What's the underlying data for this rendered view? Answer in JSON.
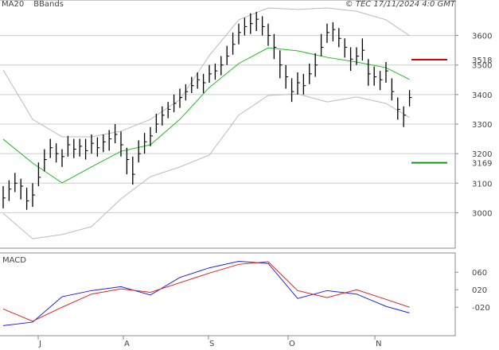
{
  "chart_data": [
    {
      "type": "ohlc",
      "title": "© TEC 17/11/2024 4:0 GMT",
      "color": "#000000",
      "grid": true,
      "xlim": [
        -0.54,
        76.76
      ],
      "ylim": [
        2880,
        3720
      ],
      "yticks": [
        3000,
        3100,
        3200,
        3300,
        3400,
        3500,
        3600
      ],
      "x": [
        0,
        1,
        2,
        3,
        4,
        5,
        6,
        7,
        8,
        9,
        10,
        11,
        12,
        13,
        14,
        15,
        16,
        17,
        18,
        19,
        20,
        21,
        22,
        23,
        24,
        25,
        26,
        27,
        28,
        29,
        30,
        31,
        32,
        33,
        34,
        35,
        36,
        37,
        38,
        39,
        40,
        41,
        42,
        43,
        44,
        45,
        46,
        47,
        48,
        49,
        50,
        51,
        52,
        53,
        54,
        55,
        56,
        57,
        58,
        59,
        60,
        61,
        62,
        63,
        64,
        65,
        66,
        67,
        68,
        69
      ],
      "high": [
        3090,
        3110,
        3135,
        3115,
        3085,
        3100,
        3170,
        3215,
        3250,
        3235,
        3215,
        3260,
        3250,
        3250,
        3250,
        3265,
        3255,
        3265,
        3280,
        3300,
        3275,
        3220,
        3190,
        3245,
        3270,
        3290,
        3335,
        3360,
        3375,
        3400,
        3420,
        3435,
        3460,
        3475,
        3470,
        3500,
        3505,
        3530,
        3565,
        3610,
        3640,
        3660,
        3675,
        3680,
        3665,
        3640,
        3605,
        3550,
        3500,
        3455,
        3475,
        3470,
        3505,
        3540,
        3605,
        3640,
        3645,
        3625,
        3590,
        3560,
        3560,
        3590,
        3520,
        3495,
        3480,
        3510,
        3455,
        3390,
        3360,
        3415
      ],
      "low": [
        3015,
        3040,
        3070,
        3045,
        3010,
        3020,
        3090,
        3140,
        3185,
        3170,
        3155,
        3190,
        3185,
        3190,
        3180,
        3200,
        3190,
        3205,
        3210,
        3235,
        3190,
        3130,
        3095,
        3170,
        3200,
        3225,
        3270,
        3295,
        3320,
        3340,
        3355,
        3380,
        3405,
        3420,
        3405,
        3440,
        3450,
        3465,
        3500,
        3535,
        3570,
        3600,
        3605,
        3615,
        3600,
        3565,
        3520,
        3455,
        3420,
        3375,
        3400,
        3400,
        3435,
        3460,
        3530,
        3575,
        3580,
        3560,
        3525,
        3480,
        3500,
        3515,
        3430,
        3430,
        3415,
        3440,
        3380,
        3315,
        3290,
        3360
      ],
      "close": [
        3050,
        3080,
        3100,
        3090,
        3040,
        3060,
        3120,
        3180,
        3220,
        3200,
        3190,
        3230,
        3215,
        3225,
        3210,
        3235,
        3220,
        3240,
        3250,
        3265,
        3230,
        3180,
        3130,
        3200,
        3240,
        3260,
        3300,
        3330,
        3350,
        3370,
        3390,
        3410,
        3430,
        3450,
        3440,
        3470,
        3480,
        3500,
        3530,
        3570,
        3610,
        3630,
        3640,
        3655,
        3630,
        3600,
        3560,
        3500,
        3460,
        3410,
        3440,
        3430,
        3470,
        3500,
        3560,
        3610,
        3620,
        3590,
        3560,
        3520,
        3530,
        3550,
        3470,
        3460,
        3450,
        3480,
        3410,
        3350,
        3330,
        3390
      ],
      "series": [
        {
          "name": "MA20",
          "color": "#22bb22",
          "x": [
            0,
            5,
            10,
            15,
            20,
            25,
            30,
            35,
            40,
            45,
            50,
            55,
            60,
            65,
            69
          ],
          "values": [
            3249,
            3168,
            3101,
            3155,
            3208,
            3230,
            3316,
            3424,
            3505,
            3558,
            3548,
            3526,
            3510,
            3491,
            3451
          ]
        },
        {
          "name": "BBands",
          "color": "#bbbbbb",
          "x": [
            0,
            5,
            10,
            15,
            20,
            25,
            30,
            35,
            40,
            45,
            50,
            55,
            60,
            65,
            69
          ],
          "upper": [
            3483,
            3316,
            3257,
            3257,
            3276,
            3316,
            3383,
            3532,
            3653,
            3693,
            3688,
            3693,
            3682,
            3653,
            3599
          ],
          "lower": [
            2998,
            2912,
            2926,
            2953,
            3047,
            3122,
            3155,
            3195,
            3330,
            3397,
            3402,
            3375,
            3392,
            3370,
            3322
          ]
        }
      ],
      "levels": [
        {
          "value": 3518,
          "color": "#dd0000"
        },
        {
          "value": 3169,
          "color": "#119911"
        }
      ]
    },
    {
      "type": "line",
      "title": "MACD",
      "grid": false,
      "xlim": [
        -0.54,
        76.76
      ],
      "ylim": [
        -85,
        104
      ],
      "yticks": [
        {
          "value": 60,
          "label": "060"
        },
        {
          "value": 20,
          "label": "020"
        },
        {
          "value": -20,
          "label": "-020"
        }
      ],
      "xticks": [
        {
          "value": 5.95,
          "label": "J"
        },
        {
          "value": 20.4,
          "label": "A"
        },
        {
          "value": 34.86,
          "label": "S"
        },
        {
          "value": 48.38,
          "label": "O"
        },
        {
          "value": 63.11,
          "label": "N"
        }
      ],
      "x": [
        0,
        5,
        10,
        15,
        20,
        25,
        30,
        35,
        40,
        45,
        50,
        55,
        60,
        65,
        69
      ],
      "series": [
        {
          "color": "#2222dd",
          "values": [
            -62,
            -54,
            4,
            18,
            27,
            8,
            48,
            70,
            85,
            80,
            0,
            18,
            10,
            -18,
            -33
          ]
        },
        {
          "color": "#dd2222",
          "values": [
            -24,
            -52,
            -20,
            10,
            22,
            14,
            36,
            58,
            78,
            84,
            18,
            2,
            20,
            -2,
            -20
          ]
        }
      ]
    }
  ]
}
